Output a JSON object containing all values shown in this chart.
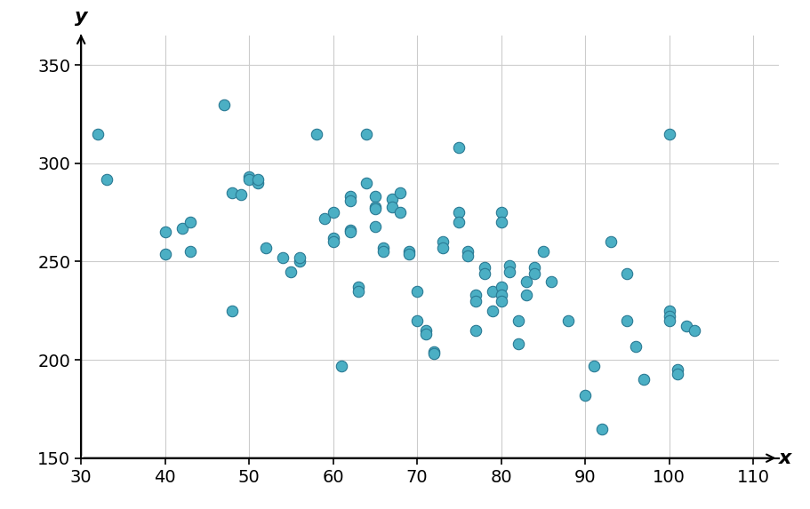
{
  "points": [
    [
      32,
      315
    ],
    [
      33,
      292
    ],
    [
      40,
      265
    ],
    [
      42,
      267
    ],
    [
      43,
      270
    ],
    [
      40,
      254
    ],
    [
      43,
      255
    ],
    [
      47,
      330
    ],
    [
      48,
      285
    ],
    [
      49,
      284
    ],
    [
      50,
      293
    ],
    [
      50,
      292
    ],
    [
      51,
      290
    ],
    [
      51,
      292
    ],
    [
      52,
      257
    ],
    [
      54,
      252
    ],
    [
      55,
      245
    ],
    [
      56,
      250
    ],
    [
      56,
      252
    ],
    [
      48,
      225
    ],
    [
      58,
      315
    ],
    [
      59,
      272
    ],
    [
      60,
      275
    ],
    [
      60,
      262
    ],
    [
      60,
      260
    ],
    [
      61,
      197
    ],
    [
      62,
      283
    ],
    [
      62,
      281
    ],
    [
      62,
      266
    ],
    [
      62,
      265
    ],
    [
      63,
      237
    ],
    [
      63,
      235
    ],
    [
      64,
      315
    ],
    [
      64,
      290
    ],
    [
      65,
      283
    ],
    [
      65,
      278
    ],
    [
      65,
      277
    ],
    [
      65,
      268
    ],
    [
      66,
      257
    ],
    [
      66,
      255
    ],
    [
      67,
      282
    ],
    [
      67,
      278
    ],
    [
      68,
      285
    ],
    [
      68,
      275
    ],
    [
      69,
      255
    ],
    [
      69,
      254
    ],
    [
      70,
      235
    ],
    [
      70,
      220
    ],
    [
      71,
      215
    ],
    [
      71,
      213
    ],
    [
      72,
      204
    ],
    [
      72,
      203
    ],
    [
      73,
      260
    ],
    [
      73,
      257
    ],
    [
      75,
      308
    ],
    [
      75,
      275
    ],
    [
      75,
      270
    ],
    [
      76,
      255
    ],
    [
      76,
      253
    ],
    [
      77,
      233
    ],
    [
      77,
      230
    ],
    [
      77,
      215
    ],
    [
      78,
      247
    ],
    [
      78,
      244
    ],
    [
      79,
      235
    ],
    [
      79,
      225
    ],
    [
      80,
      275
    ],
    [
      80,
      270
    ],
    [
      80,
      237
    ],
    [
      80,
      233
    ],
    [
      80,
      230
    ],
    [
      81,
      248
    ],
    [
      81,
      245
    ],
    [
      82,
      220
    ],
    [
      82,
      208
    ],
    [
      83,
      240
    ],
    [
      83,
      233
    ],
    [
      84,
      247
    ],
    [
      84,
      244
    ],
    [
      85,
      255
    ],
    [
      86,
      240
    ],
    [
      88,
      220
    ],
    [
      90,
      182
    ],
    [
      91,
      197
    ],
    [
      92,
      165
    ],
    [
      93,
      260
    ],
    [
      95,
      244
    ],
    [
      95,
      220
    ],
    [
      96,
      207
    ],
    [
      97,
      190
    ],
    [
      100,
      315
    ],
    [
      100,
      225
    ],
    [
      100,
      222
    ],
    [
      100,
      220
    ],
    [
      101,
      195
    ],
    [
      101,
      193
    ],
    [
      102,
      217
    ],
    [
      103,
      215
    ]
  ],
  "point_color": "#4BAFC4",
  "point_edge_color": "#2A7A94",
  "point_size": 80,
  "xlim": [
    30,
    113
  ],
  "ylim": [
    150,
    365
  ],
  "xticks": [
    30,
    40,
    50,
    60,
    70,
    80,
    90,
    100,
    110
  ],
  "yticks": [
    150,
    200,
    250,
    300,
    350
  ],
  "xlabel": "x",
  "ylabel": "y",
  "grid": true,
  "background_color": "#ffffff",
  "tick_fontsize": 14,
  "label_fontsize": 16
}
